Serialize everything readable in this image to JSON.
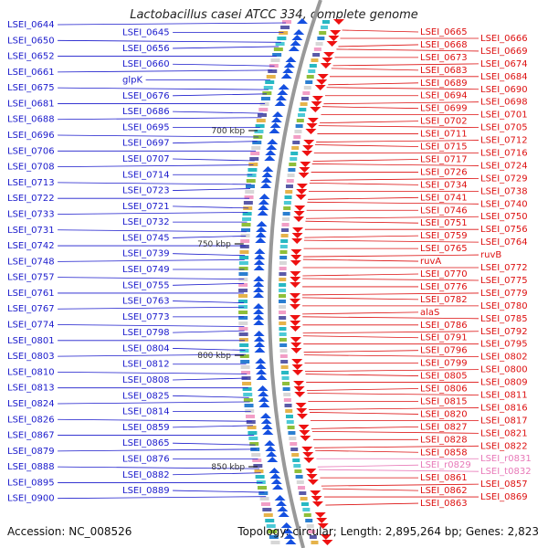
{
  "title": "Lactobacillus casei ATCC 334, complete genome",
  "footer": {
    "accession": "Accession: NC_008526",
    "topology": "Topology: circular; Length: 2,895,264 bp; Genes: 2,823"
  },
  "scale_marks": [
    "700 kbp",
    "750 kbp",
    "800 kbp",
    "850 kbp"
  ],
  "colors": {
    "reverse_labels": "#1a1acc",
    "forward_labels": "#dd1111",
    "rna_labels": "#e879b8",
    "backbone": "#999999"
  },
  "genes_left": [
    "LSEI_0644",
    "LSEI_0645",
    "LSEI_0650",
    "LSEI_0656",
    "LSEI_0652",
    "LSEI_0660",
    "LSEI_0661",
    "glpK",
    "LSEI_0675",
    "LSEI_0676",
    "LSEI_0681",
    "LSEI_0686",
    "LSEI_0688",
    "LSEI_0695",
    "LSEI_0696",
    "LSEI_0697",
    "LSEI_0706",
    "LSEI_0707",
    "LSEI_0708",
    "LSEI_0714",
    "LSEI_0713",
    "LSEI_0723",
    "LSEI_0722",
    "LSEI_0721",
    "LSEI_0733",
    "LSEI_0732",
    "LSEI_0731",
    "LSEI_0745",
    "LSEI_0742",
    "LSEI_0739",
    "LSEI_0748",
    "LSEI_0749",
    "LSEI_0757",
    "LSEI_0755",
    "LSEI_0761",
    "LSEI_0763",
    "LSEI_0767",
    "LSEI_0773",
    "LSEI_0774",
    "LSEI_0798",
    "LSEI_0801",
    "LSEI_0804",
    "LSEI_0803",
    "LSEI_0812",
    "LSEI_0810",
    "LSEI_0808",
    "LSEI_0813",
    "LSEI_0825",
    "LSEI_0824",
    "LSEI_0814",
    "LSEI_0826",
    "LSEI_0859",
    "LSEI_0867",
    "LSEI_0865",
    "LSEI_0879",
    "LSEI_0876",
    "LSEI_0888",
    "LSEI_0882",
    "LSEI_0895",
    "LSEI_0889",
    "LSEI_0900"
  ],
  "genes_right": [
    "LSEI_0665",
    "LSEI_0666",
    "LSEI_0668",
    "LSEI_0669",
    "LSEI_0673",
    "LSEI_0674",
    "LSEI_0683",
    "LSEI_0684",
    "LSEI_0689",
    "LSEI_0690",
    "LSEI_0694",
    "LSEI_0698",
    "LSEI_0699",
    "LSEI_0701",
    "LSEI_0702",
    "LSEI_0705",
    "LSEI_0711",
    "LSEI_0712",
    "LSEI_0715",
    "LSEI_0716",
    "LSEI_0717",
    "LSEI_0724",
    "LSEI_0726",
    "LSEI_0729",
    "LSEI_0734",
    "LSEI_0738",
    "LSEI_0741",
    "LSEI_0740",
    "LSEI_0746",
    "LSEI_0750",
    "LSEI_0751",
    "LSEI_0756",
    "LSEI_0759",
    "LSEI_0764",
    "LSEI_0765",
    "ruvB",
    "ruvA",
    "LSEI_0772",
    "LSEI_0770",
    "LSEI_0775",
    "LSEI_0776",
    "LSEI_0779",
    "LSEI_0782",
    "LSEI_0780",
    "alaS",
    "LSEI_0785",
    "LSEI_0786",
    "LSEI_0792",
    "LSEI_0791",
    "LSEI_0795",
    "LSEI_0796",
    "LSEI_0802",
    "LSEI_0799",
    "LSEI_0800",
    "LSEI_0805",
    "LSEI_0809",
    "LSEI_0806",
    "LSEI_0811",
    "LSEI_0815",
    "LSEI_0816",
    "LSEI_0820",
    "LSEI_0817",
    "LSEI_0827",
    "LSEI_0821",
    "LSEI_0828",
    "LSEI_0822",
    "LSEI_0858",
    "LSEI_r0831",
    "LSEI_r0829",
    "LSEI_t0832",
    "LSEI_0861",
    "LSEI_0857",
    "LSEI_0862",
    "LSEI_0869",
    "LSEI_0863"
  ]
}
